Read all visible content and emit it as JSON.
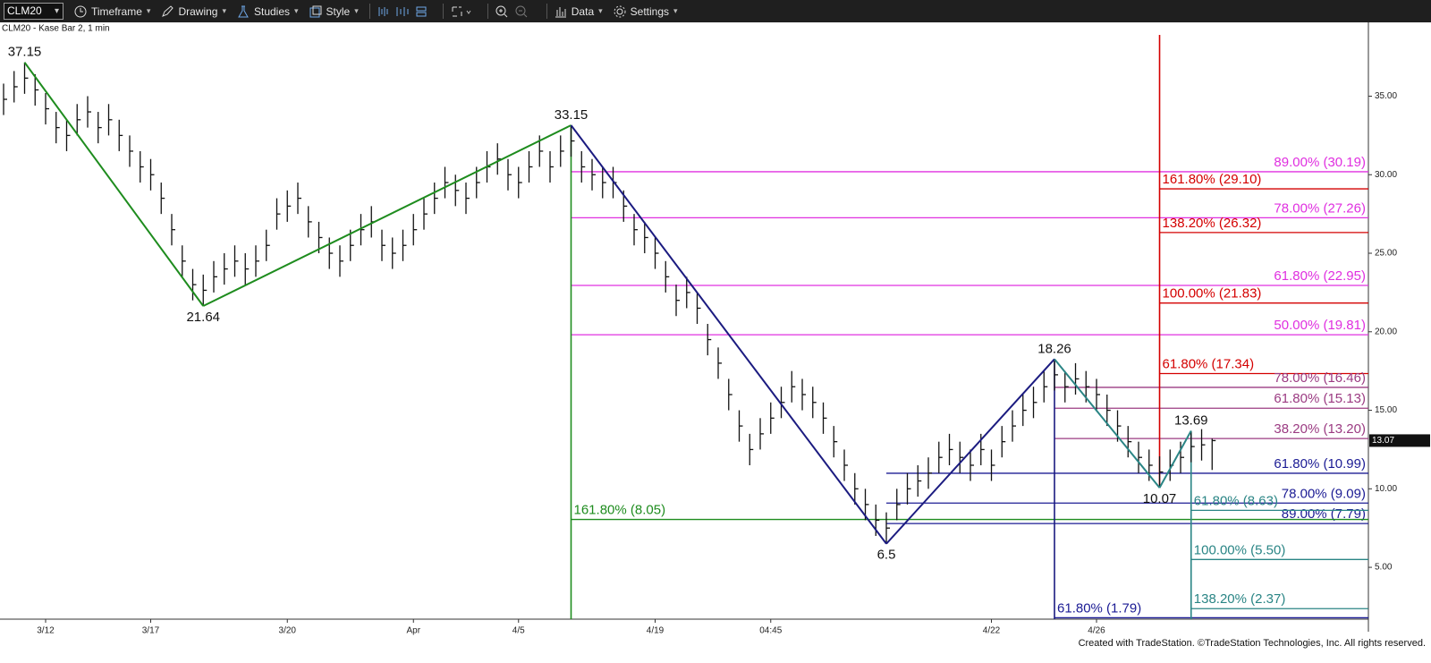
{
  "toolbar": {
    "symbol": "CLM20",
    "items": [
      "Timeframe",
      "Drawing",
      "Studies",
      "Style",
      "Data",
      "Settings"
    ]
  },
  "footer": "Created with TradeStation. ©TradeStation Technologies, Inc. All rights reserved.",
  "chart_data": {
    "type": "ohlc",
    "subtitle": "CLM20 - Kase Bar 2, 1 min",
    "xlim": [
      -0.34,
      129.87
    ],
    "ylim": [
      1.7,
      39.7
    ],
    "xticks": [
      {
        "value": 4,
        "label": "3/12"
      },
      {
        "value": 14,
        "label": "3/17"
      },
      {
        "value": 27,
        "label": "3/20"
      },
      {
        "value": 39,
        "label": "Apr"
      },
      {
        "value": 49,
        "label": "4/5"
      },
      {
        "value": 62,
        "label": "4/19"
      },
      {
        "value": 73,
        "label": "04:45"
      },
      {
        "value": 94,
        "label": "4/22"
      },
      {
        "value": 104,
        "label": "4/26"
      }
    ],
    "yticks": [
      {
        "value": 5,
        "label": "5.00"
      },
      {
        "value": 10,
        "label": "10.00"
      },
      {
        "value": 15,
        "label": "15.00"
      },
      {
        "value": 20,
        "label": "20.00"
      },
      {
        "value": 25,
        "label": "25.00"
      },
      {
        "value": 30,
        "label": "30.00"
      },
      {
        "value": 35,
        "label": "35.00"
      }
    ],
    "last_price": 13.07,
    "bar_color": "#111111",
    "ohlc": {
      "high": [
        35.8,
        36.6,
        37.15,
        36.4,
        35.2,
        34.0,
        33.5,
        34.5,
        35.0,
        34.0,
        34.5,
        33.5,
        32.5,
        31.5,
        31.0,
        29.5,
        27.5,
        25.5,
        24.0,
        23.64,
        24.5,
        25.0,
        25.5,
        25.0,
        25.5,
        26.5,
        28.5,
        29.0,
        29.5,
        28.0,
        27.0,
        26.0,
        25.5,
        26.5,
        27.5,
        28.0,
        26.5,
        26.0,
        26.5,
        27.5,
        28.5,
        29.5,
        30.5,
        30.0,
        29.5,
        30.5,
        31.5,
        32.0,
        31.0,
        30.5,
        31.5,
        32.5,
        31.5,
        32.5,
        33.15,
        31.5,
        31.0,
        30.5,
        30.5,
        29.0,
        27.5,
        27.0,
        26.0,
        24.5,
        23.0,
        23.5,
        22.5,
        20.5,
        19.0,
        17.0,
        15.0,
        13.5,
        14.5,
        15.5,
        16.5,
        17.5,
        17.0,
        16.5,
        15.5,
        14.0,
        12.5,
        11.0,
        10.0,
        9.0,
        8.5,
        10.0,
        11.0,
        11.5,
        12.0,
        13.0,
        13.5,
        13.0,
        12.5,
        13.5,
        12.5,
        14.0,
        15.0,
        16.0,
        16.5,
        17.5,
        18.26,
        17.5,
        18.0,
        17.5,
        17.0,
        16.0,
        15.0,
        14.0,
        13.0,
        12.5,
        12.07,
        12.5,
        13.0,
        13.69,
        13.8,
        13.2
      ],
      "low": [
        33.8,
        34.6,
        35.15,
        34.4,
        33.2,
        32.0,
        31.5,
        32.5,
        33.0,
        32.0,
        32.5,
        31.5,
        30.5,
        29.5,
        29.0,
        27.5,
        25.5,
        23.5,
        22.0,
        21.64,
        22.5,
        23.0,
        23.5,
        23.0,
        23.5,
        24.5,
        26.5,
        27.0,
        27.5,
        26.0,
        25.0,
        24.0,
        23.5,
        24.5,
        25.5,
        26.0,
        24.5,
        24.0,
        24.5,
        25.5,
        26.5,
        27.5,
        28.5,
        28.0,
        27.5,
        28.5,
        29.5,
        30.0,
        29.0,
        28.5,
        29.5,
        30.5,
        29.5,
        30.5,
        31.15,
        29.5,
        29.0,
        28.5,
        28.5,
        27.0,
        25.5,
        25.0,
        24.0,
        22.5,
        21.0,
        21.5,
        20.5,
        18.5,
        17.0,
        15.0,
        13.0,
        11.5,
        12.5,
        13.5,
        14.5,
        15.5,
        15.0,
        14.5,
        13.5,
        12.0,
        10.5,
        9.0,
        8.0,
        7.0,
        6.5,
        8.0,
        9.0,
        9.5,
        10.0,
        11.0,
        11.5,
        11.0,
        10.5,
        11.5,
        10.5,
        12.0,
        13.0,
        14.0,
        14.5,
        15.5,
        16.26,
        15.5,
        16.0,
        15.5,
        15.0,
        14.0,
        13.0,
        12.0,
        11.0,
        10.5,
        10.07,
        10.5,
        11.0,
        11.69,
        11.8,
        11.2
      ],
      "close": [
        34.8,
        35.6,
        36.15,
        35.4,
        34.2,
        33.0,
        32.5,
        33.5,
        34.0,
        33.0,
        33.5,
        32.5,
        31.5,
        30.5,
        30.0,
        28.5,
        26.5,
        24.5,
        23.0,
        22.64,
        23.5,
        24.0,
        24.5,
        24.0,
        24.5,
        25.5,
        27.5,
        28.0,
        28.5,
        27.0,
        26.0,
        25.0,
        24.5,
        25.5,
        26.5,
        27.0,
        25.5,
        25.0,
        25.5,
        26.5,
        27.5,
        28.5,
        29.5,
        29.0,
        28.5,
        29.5,
        30.5,
        31.0,
        30.0,
        29.5,
        30.5,
        31.5,
        30.5,
        31.5,
        32.15,
        30.5,
        30.0,
        29.5,
        29.5,
        28.0,
        26.5,
        26.0,
        25.0,
        23.5,
        22.0,
        22.5,
        21.5,
        19.5,
        18.0,
        16.0,
        14.0,
        12.5,
        13.5,
        14.5,
        15.5,
        16.5,
        16.0,
        15.5,
        14.5,
        13.0,
        11.5,
        10.0,
        9.0,
        8.0,
        7.5,
        9.0,
        10.0,
        10.5,
        11.0,
        12.0,
        12.5,
        12.0,
        11.5,
        12.5,
        11.5,
        13.0,
        14.0,
        15.0,
        15.5,
        16.5,
        17.26,
        16.5,
        17.0,
        16.5,
        16.0,
        15.0,
        14.0,
        13.0,
        12.0,
        11.5,
        11.07,
        11.5,
        12.0,
        12.69,
        12.8,
        13.07
      ]
    },
    "zigzag": {
      "x": [
        2,
        19,
        54,
        84,
        100,
        110,
        113
      ],
      "values": [
        37.15,
        21.64,
        33.15,
        6.5,
        18.26,
        10.07,
        13.69
      ],
      "segment_colors": [
        "#1e8c1e",
        "#1e8c1e",
        "#1b1b80",
        "#1b1b80",
        "#2a8585",
        "#2a8585"
      ]
    },
    "verticals": [
      {
        "x": 54,
        "from": 33.15,
        "to": 1.7,
        "color": "#1e8c1e"
      },
      {
        "x": 110,
        "from": 38.9,
        "to": 10.07,
        "color": "#d40000"
      },
      {
        "x": 100,
        "from": 18.26,
        "to": 1.7,
        "color": "#1b1b80"
      },
      {
        "x": 113,
        "from": 13.69,
        "to": 1.7,
        "color": "#2a8585"
      }
    ],
    "levels": [
      {
        "label": "89.00% (30.19)",
        "value": 30.19,
        "x_start": 54,
        "color": "#e030e0",
        "align": "right"
      },
      {
        "label": "78.00% (27.26)",
        "value": 27.26,
        "x_start": 54,
        "color": "#e030e0",
        "align": "right"
      },
      {
        "label": "61.80% (22.95)",
        "value": 22.95,
        "x_start": 54,
        "color": "#e030e0",
        "align": "right"
      },
      {
        "label": "50.00% (19.81)",
        "value": 19.81,
        "x_start": 54,
        "color": "#e030e0",
        "align": "right"
      },
      {
        "label": "161.80% (29.10)",
        "value": 29.1,
        "x_start": 110,
        "color": "#d40000",
        "align": "left"
      },
      {
        "label": "138.20% (26.32)",
        "value": 26.32,
        "x_start": 110,
        "color": "#d40000",
        "align": "left"
      },
      {
        "label": "100.00% (21.83)",
        "value": 21.83,
        "x_start": 110,
        "color": "#d40000",
        "align": "left"
      },
      {
        "label": "61.80% (17.34)",
        "value": 17.34,
        "x_start": 110,
        "color": "#d40000",
        "align": "left"
      },
      {
        "label": "78.00% (16.46)",
        "value": 16.46,
        "x_start": 100,
        "color": "#9b3b82",
        "align": "right"
      },
      {
        "label": "61.80% (15.13)",
        "value": 15.13,
        "x_start": 100,
        "color": "#9b3b82",
        "align": "right"
      },
      {
        "label": "38.20% (13.20)",
        "value": 13.2,
        "x_start": 100,
        "color": "#9b3b82",
        "align": "right"
      },
      {
        "label": "61.80% (10.99)",
        "value": 10.99,
        "x_start": 84,
        "color": "#1b1b94",
        "align": "right"
      },
      {
        "label": "78.00% (9.09)",
        "value": 9.09,
        "x_start": 84,
        "color": "#1b1b94",
        "align": "right"
      },
      {
        "label": "89.00% (7.79)",
        "value": 7.79,
        "x_start": 84,
        "color": "#1b1b94",
        "align": "right"
      },
      {
        "label": "61.80% (1.79)",
        "value": 1.79,
        "x_start": 100,
        "color": "#1b1b94",
        "align": "left"
      },
      {
        "label": "61.80% (8.63)",
        "value": 8.63,
        "x_start": 113,
        "color": "#2a8585",
        "align": "left"
      },
      {
        "label": "100.00% (5.50)",
        "value": 5.5,
        "x_start": 113,
        "color": "#2a8585",
        "align": "left"
      },
      {
        "label": "138.20% (2.37)",
        "value": 2.37,
        "x_start": 113,
        "color": "#2a8585",
        "align": "left"
      },
      {
        "label": "161.80% (8.05)",
        "value": 8.05,
        "x_start": 54,
        "color": "#1e8c1e",
        "align": "left"
      }
    ]
  }
}
